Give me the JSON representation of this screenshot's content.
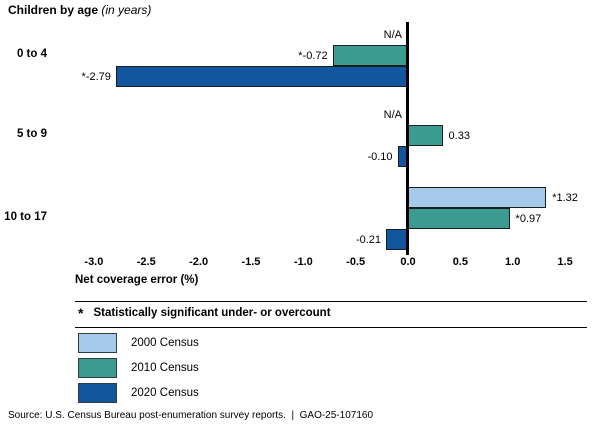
{
  "title": {
    "main": "Children by age",
    "suffix": "(in years)"
  },
  "chart_data": {
    "type": "bar",
    "orientation": "horizontal",
    "categories": [
      "0 to 4",
      "5 to 9",
      "10 to 17"
    ],
    "series": [
      {
        "name": "2000 Census",
        "color": "#a6cbea",
        "values": [
          null,
          null,
          1.32
        ],
        "labels": [
          "N/A",
          "N/A",
          "*1.32"
        ]
      },
      {
        "name": "2010 Census",
        "color": "#3b9b90",
        "values": [
          -0.72,
          0.33,
          0.97
        ],
        "labels": [
          "*-0.72",
          "0.33",
          "*0.97"
        ]
      },
      {
        "name": "2020 Census",
        "color": "#11569e",
        "values": [
          -2.79,
          -0.1,
          -0.21
        ],
        "labels": [
          "*-2.79",
          "-0.10",
          "-0.21"
        ]
      }
    ],
    "xlabel": "Net coverage error (%)",
    "xlim": [
      -3.25,
      1.75
    ],
    "xticks": [
      -3.0,
      -2.5,
      -2.0,
      -1.5,
      -1.0,
      -0.5,
      0.0,
      0.5,
      1.0,
      1.5
    ],
    "xtick_labels": [
      "-3.0",
      "-2.5",
      "-2.0",
      "-1.5",
      "-1.0",
      "-0.5",
      "0.0",
      "0.5",
      "1.0",
      "1.5"
    ],
    "grid": false,
    "legend_position": "bottom-left"
  },
  "note": {
    "marker": "*",
    "text": "Statistically significant under- or overcount"
  },
  "legend": [
    {
      "label": "2000 Census",
      "color": "#a6cbea"
    },
    {
      "label": "2010 Census",
      "color": "#3b9b90"
    },
    {
      "label": "2020 Census",
      "color": "#11569e"
    }
  ],
  "source": "Source: U.S. Census Bureau post-enumeration survey reports.  |  GAO-25-107160"
}
